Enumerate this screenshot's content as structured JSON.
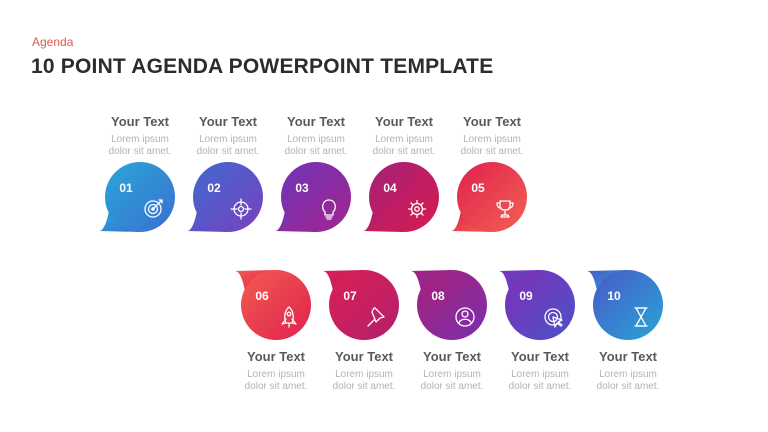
{
  "header": {
    "kicker": "Agenda",
    "title": "10 POINT AGENDA POWERPOINT TEMPLATE"
  },
  "items": [
    {
      "number": "01",
      "title": "Your Text",
      "desc_line1": "Lorem ipsum",
      "desc_line2": "dolor sit amet.",
      "icon": "target-icon",
      "color_start": "#2aa7d8",
      "color_end": "#3a6fd0"
    },
    {
      "number": "02",
      "title": "Your Text",
      "desc_line1": "Lorem ipsum",
      "desc_line2": "dolor sit amet.",
      "icon": "crosshair-icon",
      "color_start": "#3f6ad0",
      "color_end": "#7a3fc0"
    },
    {
      "number": "03",
      "title": "Your Text",
      "desc_line1": "Lorem ipsum",
      "desc_line2": "dolor sit amet.",
      "icon": "lightbulb-icon",
      "color_start": "#6e35b8",
      "color_end": "#a3248e"
    },
    {
      "number": "04",
      "title": "Your Text",
      "desc_line1": "Lorem ipsum",
      "desc_line2": "dolor sit amet.",
      "icon": "gear-icon",
      "color_start": "#a3217a",
      "color_end": "#d81b4e"
    },
    {
      "number": "05",
      "title": "Your Text",
      "desc_line1": "Lorem ipsum",
      "desc_line2": "dolor sit amet.",
      "icon": "trophy-icon",
      "color_start": "#e02150",
      "color_end": "#f3614f"
    },
    {
      "number": "06",
      "title": "Your Text",
      "desc_line1": "Lorem ipsum",
      "desc_line2": "dolor sit amet.",
      "icon": "rocket-icon",
      "color_start": "#f25b50",
      "color_end": "#e0224f"
    },
    {
      "number": "07",
      "title": "Your Text",
      "desc_line1": "Lorem ipsum",
      "desc_line2": "dolor sit amet.",
      "icon": "pushpin-icon",
      "color_start": "#dd1f52",
      "color_end": "#b0206e"
    },
    {
      "number": "08",
      "title": "Your Text",
      "desc_line1": "Lorem ipsum",
      "desc_line2": "dolor sit amet.",
      "icon": "user-icon",
      "color_start": "#a82178",
      "color_end": "#7a2fb0"
    },
    {
      "number": "09",
      "title": "Your Text",
      "desc_line1": "Lorem ipsum",
      "desc_line2": "dolor sit amet.",
      "icon": "cursor-click-icon",
      "color_start": "#7f30b8",
      "color_end": "#4a52c8"
    },
    {
      "number": "10",
      "title": "Your Text",
      "desc_line1": "Lorem ipsum",
      "desc_line2": "dolor sit amet.",
      "icon": "hourglass-icon",
      "color_start": "#4a58c8",
      "color_end": "#27a6d6"
    }
  ],
  "colors": {
    "accent": "#e0584f",
    "line_row1_start": "#2f4a8a",
    "line_row1_end": "#e0224f",
    "line_row2_start": "#f25b50",
    "line_row2_end": "#2a6fc0"
  }
}
